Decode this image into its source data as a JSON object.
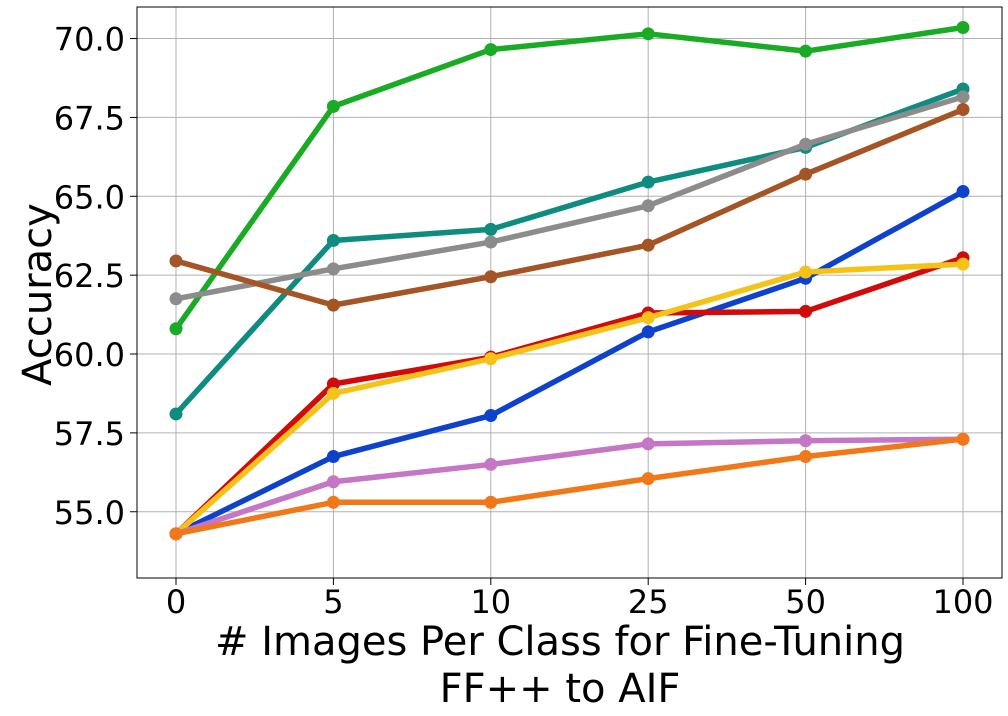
{
  "chart_data": {
    "type": "line",
    "title": "",
    "xlabel": "# Images Per Class for Fine-Tuning",
    "xlabel_line2": "FF++ to AIF",
    "ylabel": "Accuracy",
    "categories": [
      "0",
      "5",
      "10",
      "25",
      "50",
      "100"
    ],
    "ylim": [
      52.9,
      71.0
    ],
    "yticks": [
      55.0,
      57.5,
      60.0,
      62.5,
      65.0,
      67.5,
      70.0
    ],
    "ytick_labels": [
      "55.0",
      "57.5",
      "60.0",
      "62.5",
      "65.0",
      "67.5",
      "70.0"
    ],
    "grid": true,
    "legend": "none",
    "series": [
      {
        "color": "#1aab25",
        "values": [
          60.8,
          67.85,
          69.65,
          70.15,
          69.6,
          70.35
        ]
      },
      {
        "color": "#0f8c80",
        "values": [
          58.1,
          63.6,
          63.95,
          65.45,
          66.55,
          68.4
        ]
      },
      {
        "color": "#8c8c8c",
        "values": [
          61.75,
          62.7,
          63.55,
          64.7,
          66.65,
          68.15
        ]
      },
      {
        "color": "#a55525",
        "values": [
          62.95,
          61.55,
          62.45,
          63.45,
          65.7,
          67.75
        ]
      },
      {
        "color": "#0f42cc",
        "values": [
          54.3,
          56.75,
          58.05,
          60.7,
          62.4,
          65.15
        ]
      },
      {
        "color": "#d10a0a",
        "values": [
          54.3,
          59.05,
          59.9,
          61.3,
          61.35,
          63.05
        ]
      },
      {
        "color": "#f5c218",
        "values": [
          54.3,
          58.75,
          59.85,
          61.15,
          62.6,
          62.85
        ]
      },
      {
        "color": "#c576c4",
        "values": [
          54.3,
          55.95,
          56.5,
          57.15,
          57.25,
          57.3
        ]
      },
      {
        "color": "#f07818",
        "values": [
          54.3,
          55.3,
          55.3,
          56.05,
          56.75,
          57.3
        ]
      }
    ]
  }
}
